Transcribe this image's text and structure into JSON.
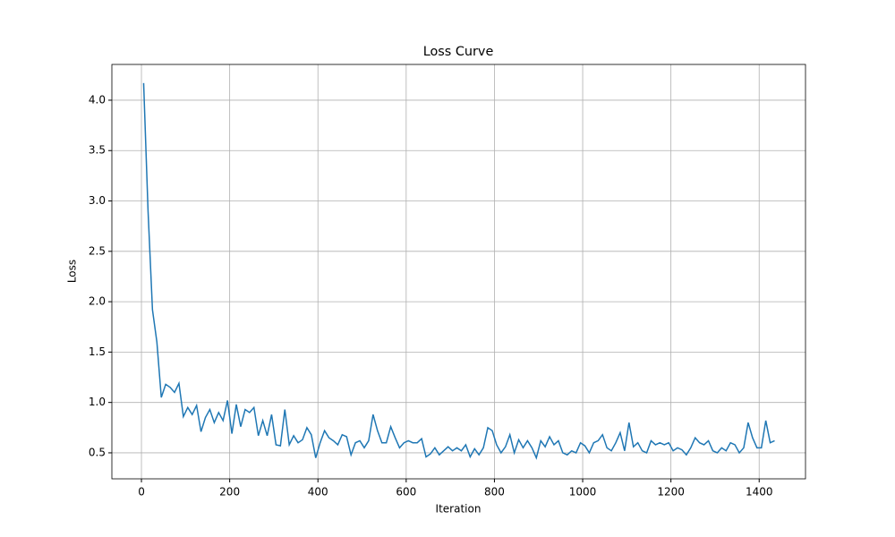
{
  "chart_data": {
    "type": "line",
    "title": "Loss Curve",
    "xlabel": "Iteration",
    "ylabel": "Loss",
    "x": [
      5,
      15,
      25,
      35,
      45,
      55,
      65,
      75,
      85,
      95,
      105,
      115,
      125,
      135,
      145,
      155,
      165,
      175,
      185,
      195,
      205,
      215,
      225,
      235,
      245,
      255,
      265,
      275,
      285,
      295,
      305,
      315,
      325,
      335,
      345,
      355,
      365,
      375,
      385,
      395,
      405,
      415,
      425,
      435,
      445,
      455,
      465,
      475,
      485,
      495,
      505,
      515,
      525,
      535,
      545,
      555,
      565,
      575,
      585,
      595,
      605,
      615,
      625,
      635,
      645,
      655,
      665,
      675,
      685,
      695,
      705,
      715,
      725,
      735,
      745,
      755,
      765,
      775,
      785,
      795,
      805,
      815,
      825,
      835,
      845,
      855,
      865,
      875,
      885,
      895,
      905,
      915,
      925,
      935,
      945,
      955,
      965,
      975,
      985,
      995,
      1005,
      1015,
      1025,
      1035,
      1045,
      1055,
      1065,
      1075,
      1085,
      1095,
      1105,
      1115,
      1125,
      1135,
      1145,
      1155,
      1165,
      1175,
      1185,
      1195,
      1205,
      1215,
      1225,
      1235,
      1245,
      1255,
      1265,
      1275,
      1285,
      1295,
      1305,
      1315,
      1325,
      1335,
      1345,
      1355,
      1365,
      1375,
      1385,
      1395,
      1405,
      1415,
      1425,
      1435
    ],
    "series": [
      {
        "name": "Loss",
        "color": "#1f77b4",
        "values": [
          4.17,
          2.9,
          1.92,
          1.6,
          1.05,
          1.18,
          1.15,
          1.1,
          1.19,
          0.86,
          0.95,
          0.88,
          0.97,
          0.71,
          0.85,
          0.93,
          0.8,
          0.9,
          0.82,
          1.02,
          0.69,
          0.98,
          0.76,
          0.93,
          0.9,
          0.95,
          0.67,
          0.82,
          0.67,
          0.88,
          0.58,
          0.57,
          0.93,
          0.58,
          0.67,
          0.6,
          0.63,
          0.75,
          0.68,
          0.45,
          0.6,
          0.72,
          0.65,
          0.62,
          0.58,
          0.68,
          0.66,
          0.48,
          0.6,
          0.62,
          0.55,
          0.62,
          0.88,
          0.72,
          0.6,
          0.6,
          0.76,
          0.65,
          0.55,
          0.6,
          0.62,
          0.6,
          0.6,
          0.64,
          0.46,
          0.49,
          0.55,
          0.48,
          0.52,
          0.56,
          0.52,
          0.55,
          0.52,
          0.58,
          0.46,
          0.54,
          0.48,
          0.55,
          0.75,
          0.72,
          0.58,
          0.5,
          0.56,
          0.68,
          0.5,
          0.63,
          0.55,
          0.62,
          0.55,
          0.45,
          0.62,
          0.56,
          0.66,
          0.58,
          0.62,
          0.5,
          0.48,
          0.52,
          0.5,
          0.6,
          0.57,
          0.5,
          0.6,
          0.62,
          0.68,
          0.55,
          0.52,
          0.6,
          0.7,
          0.52,
          0.8,
          0.56,
          0.6,
          0.52,
          0.5,
          0.62,
          0.58,
          0.6,
          0.58,
          0.6,
          0.52,
          0.55,
          0.53,
          0.48,
          0.55,
          0.65,
          0.6,
          0.58,
          0.62,
          0.52,
          0.5,
          0.55,
          0.52,
          0.6,
          0.58,
          0.5,
          0.55,
          0.8,
          0.65,
          0.55,
          0.55,
          0.82,
          0.6,
          0.62
        ]
      }
    ],
    "xlim": [
      -67,
      1505
    ],
    "ylim": [
      0.242,
      4.355
    ],
    "xticks": [
      0,
      200,
      400,
      600,
      800,
      1000,
      1200,
      1400
    ],
    "yticks": [
      0.5,
      {
        "value": 1,
        "label": "1.0"
      },
      1.5,
      {
        "value": 2,
        "label": "2.0"
      },
      2.5,
      {
        "value": 3,
        "label": "3.0"
      },
      3.5,
      {
        "value": 4,
        "label": "4.0"
      }
    ],
    "grid": true
  }
}
